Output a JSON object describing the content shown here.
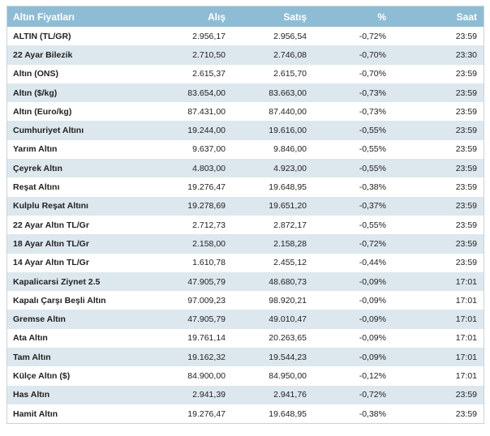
{
  "table": {
    "headers": [
      "Altın Fiyatları",
      "Alış",
      "Satış",
      "%",
      "Saat"
    ],
    "rows": [
      [
        "ALTIN (TL/GR)",
        "2.956,17",
        "2.956,54",
        "-0,72%",
        "23:59"
      ],
      [
        "22 Ayar Bilezik",
        "2.710,50",
        "2.746,08",
        "-0,70%",
        "23:30"
      ],
      [
        "Altın (ONS)",
        "2.615,37",
        "2.615,70",
        "-0,70%",
        "23:59"
      ],
      [
        "Altın ($/kg)",
        "83.654,00",
        "83.663,00",
        "-0,73%",
        "23:59"
      ],
      [
        "Altın (Euro/kg)",
        "87.431,00",
        "87.440,00",
        "-0,73%",
        "23:59"
      ],
      [
        "Cumhuriyet Altını",
        "19.244,00",
        "19.616,00",
        "-0,55%",
        "23:59"
      ],
      [
        "Yarım Altın",
        "9.637,00",
        "9.846,00",
        "-0,55%",
        "23:59"
      ],
      [
        "Çeyrek Altın",
        "4.803,00",
        "4.923,00",
        "-0,55%",
        "23:59"
      ],
      [
        "Reşat Altını",
        "19.276,47",
        "19.648,95",
        "-0,38%",
        "23:59"
      ],
      [
        "Kulplu Reşat Altını",
        "19.278,69",
        "19.651,20",
        "-0,37%",
        "23:59"
      ],
      [
        "22 Ayar Altın TL/Gr",
        "2.712,73",
        "2.872,17",
        "-0,55%",
        "23:59"
      ],
      [
        "18 Ayar Altın TL/Gr",
        "2.158,00",
        "2.158,28",
        "-0,72%",
        "23:59"
      ],
      [
        "14 Ayar Altın TL/Gr",
        "1.610,78",
        "2.455,12",
        "-0,44%",
        "23:59"
      ],
      [
        "Kapalicarsi Ziynet 2.5",
        "47.905,79",
        "48.680,73",
        "-0,09%",
        "17:01"
      ],
      [
        "Kapalı Çarşı Beşli Altın",
        "97.009,23",
        "98.920,21",
        "-0,09%",
        "17:01"
      ],
      [
        "Gremse Altın",
        "47.905,79",
        "49.010,47",
        "-0,09%",
        "17:01"
      ],
      [
        "Ata Altın",
        "19.761,14",
        "20.263,65",
        "-0,09%",
        "17:01"
      ],
      [
        "Tam Altın",
        "19.162,32",
        "19.544,23",
        "-0,09%",
        "17:01"
      ],
      [
        "Külçe Altın ($)",
        "84.900,00",
        "84.950,00",
        "-0,12%",
        "17:01"
      ],
      [
        "Has Altın",
        "2.941,39",
        "2.941,76",
        "-0,72%",
        "23:59"
      ],
      [
        "Hamit Altın",
        "19.276,47",
        "19.648,95",
        "-0,38%",
        "23:59"
      ]
    ]
  },
  "colors": {
    "header_bg": "#8fbcd5",
    "stripe_bg": "#dde7ee",
    "header_text": "#ffffff"
  }
}
